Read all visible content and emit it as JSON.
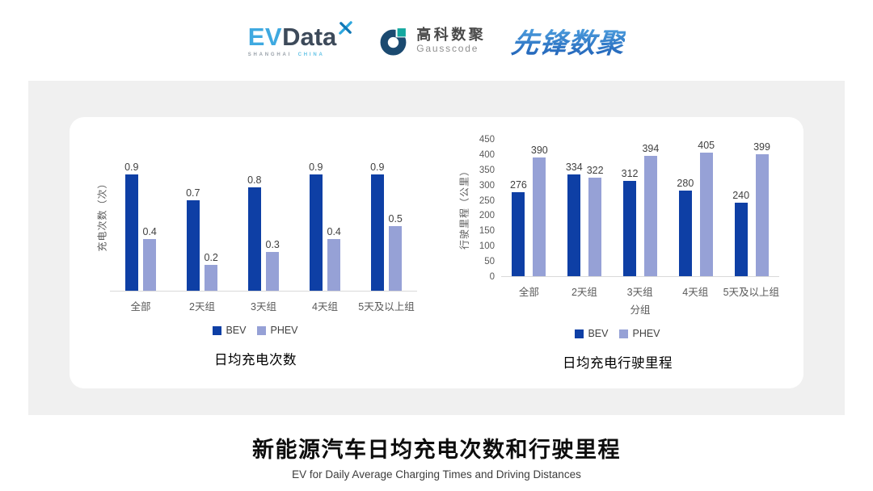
{
  "header": {
    "evdata": {
      "ev": "EV",
      "data": "Data",
      "sub_left": "SHANGHAI",
      "sub_right": "CHINA"
    },
    "gausscode": {
      "cn": "高科数聚",
      "en": "Gausscode"
    },
    "xianfeng": {
      "text": "先锋数聚"
    }
  },
  "colors": {
    "bev": "#0e3fa5",
    "phev": "#96a1d6",
    "panel_bg": "#f0f0f0",
    "baseline": "#d9d9d9",
    "axis_text": "#595959",
    "data_label": "#404040"
  },
  "chart_data": [
    {
      "type": "bar",
      "title": "日均充电次数",
      "ylabel": "充电次数（次）",
      "xlabel": "",
      "categories": [
        "全部",
        "2天组",
        "3天组",
        "4天组",
        "5天及以上组"
      ],
      "series": [
        {
          "name": "BEV",
          "color": "#0e3fa5",
          "values": [
            0.9,
            0.7,
            0.8,
            0.9,
            0.9
          ]
        },
        {
          "name": "PHEV",
          "color": "#96a1d6",
          "values": [
            0.4,
            0.2,
            0.3,
            0.4,
            0.5
          ]
        }
      ],
      "ylim": [
        0,
        1
      ],
      "yticks": [],
      "grid": false,
      "legend_position": "bottom"
    },
    {
      "type": "bar",
      "title": "日均充电行驶里程",
      "ylabel": "行驶里程（公里）",
      "xlabel": "分组",
      "categories": [
        "全部",
        "2天组",
        "3天组",
        "4天组",
        "5天及以上组"
      ],
      "series": [
        {
          "name": "BEV",
          "color": "#0e3fa5",
          "values": [
            276,
            334,
            312,
            280,
            240
          ]
        },
        {
          "name": "PHEV",
          "color": "#96a1d6",
          "values": [
            390,
            322,
            394,
            405,
            399
          ]
        }
      ],
      "ylim": [
        0,
        450
      ],
      "yticks": [
        0,
        50,
        100,
        150,
        200,
        250,
        300,
        350,
        400,
        450
      ],
      "grid": false,
      "legend_position": "bottom"
    }
  ],
  "footer": {
    "title": "新能源汽车日均充电次数和行驶里程",
    "subtitle": "EV for Daily Average Charging Times and Driving Distances"
  }
}
